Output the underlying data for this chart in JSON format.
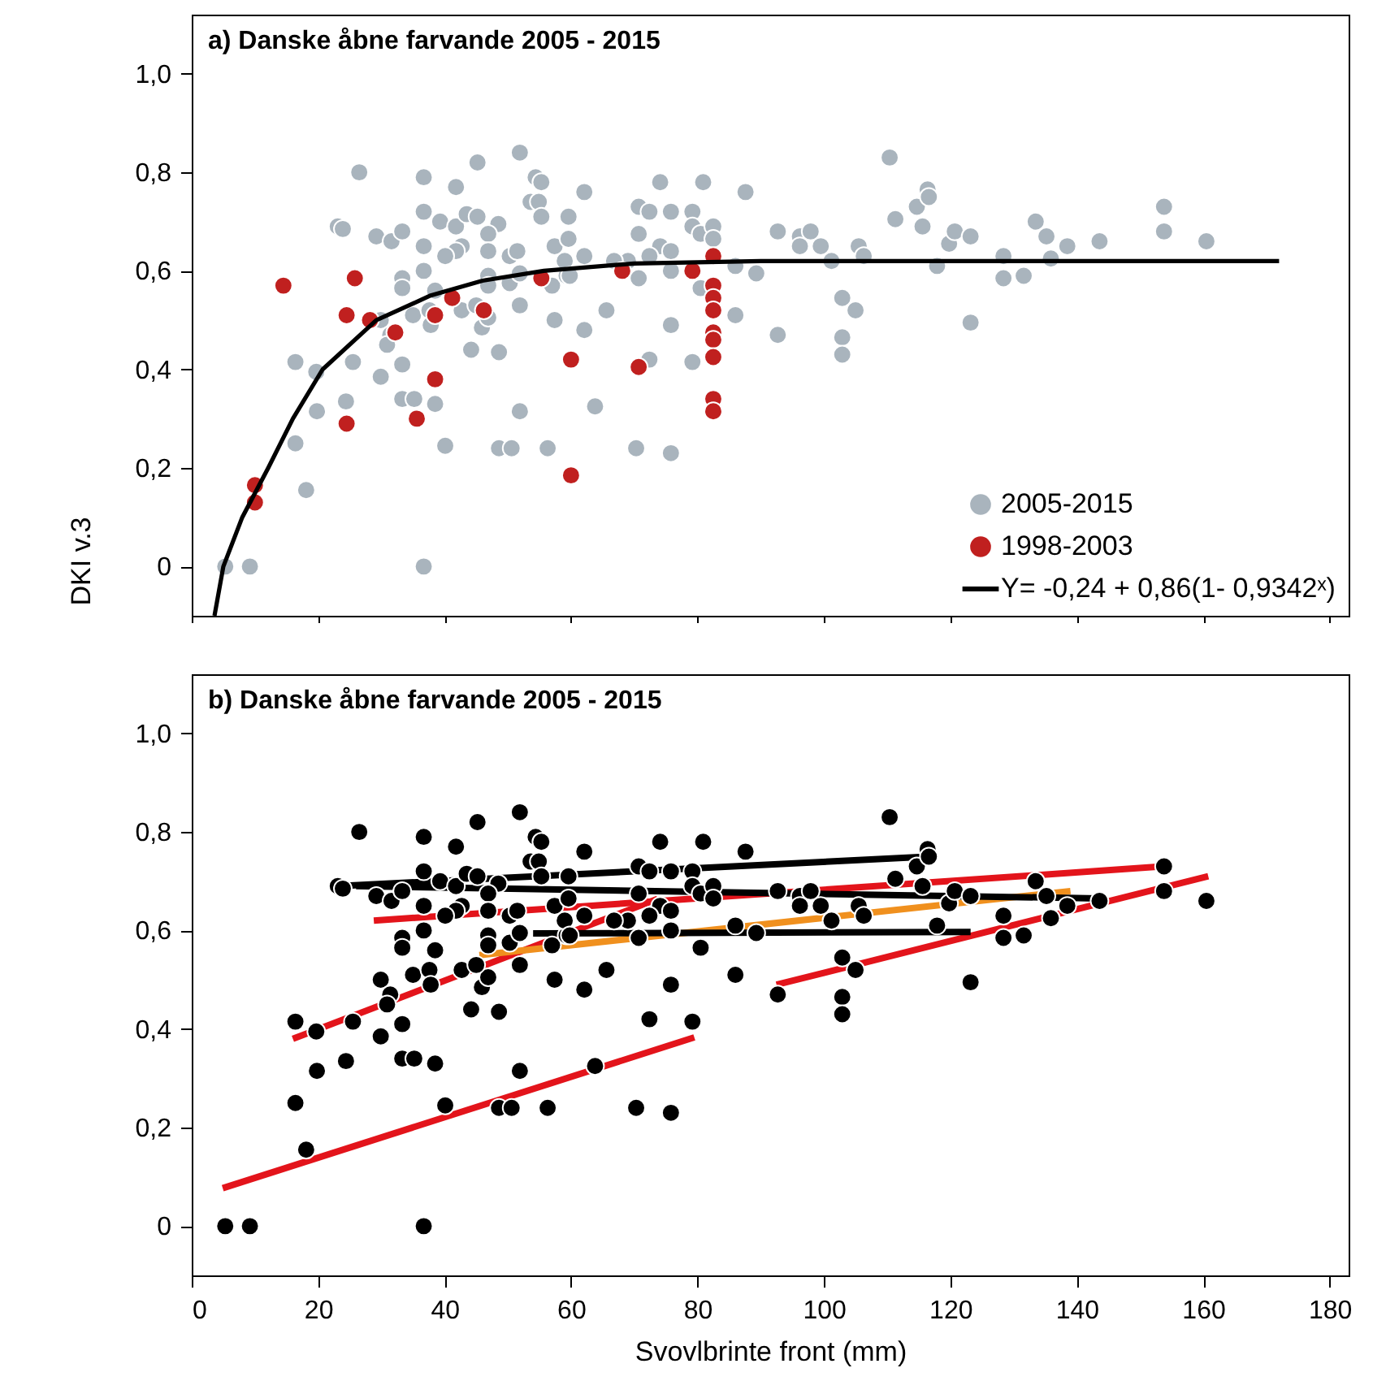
{
  "chart_data": [
    {
      "type": "scatter",
      "title": "a) Danske åbne farvande 2005 - 2015",
      "ylabel": "DKI v.3",
      "xlim": [
        0,
        183
      ],
      "ylim": [
        -0.1,
        1.12
      ],
      "xticks": [
        0,
        20,
        40,
        60,
        80,
        100,
        120,
        140,
        160,
        180
      ],
      "yticks": [
        {
          "value": 0,
          "label": "0"
        },
        {
          "value": 0.2,
          "label": "0,2"
        },
        {
          "value": 0.4,
          "label": "0,4"
        },
        {
          "value": 0.6,
          "label": "0,6"
        },
        {
          "value": 0.8,
          "label": "0,8"
        },
        {
          "value": 1,
          "label": "1,0"
        }
      ],
      "tick_labels": "y",
      "legend": "bottom right",
      "series": [
        {
          "name": "2005-2015",
          "color": "#a9b4bd",
          "marker": "circle",
          "x": [
            5.3,
            9.2,
            36.7,
            26.5,
            36.7,
            45.2,
            51.9,
            41.8,
            54.4,
            55.3,
            23.1,
            23.9,
            29.2,
            31.6,
            33.3,
            36.7,
            39.3,
            36.7,
            41.8,
            43.5,
            45.2,
            48.5,
            46.9,
            42.7,
            41.8,
            40.1,
            46.9,
            50.3,
            51.5,
            53.6,
            54.9,
            55.3,
            57.4,
            33.3,
            33.3,
            36.7,
            38.5,
            46.9,
            46.9,
            50.3,
            51.9,
            51.9,
            57,
            57.4,
            59.3,
            29.9,
            31.4,
            30.9,
            33.3,
            35,
            37.6,
            37.8,
            42.7,
            45.9,
            46.9,
            45,
            44.2,
            48.6,
            16.4,
            19.7,
            25.5,
            29.9,
            19.8,
            24.4,
            33.3,
            35.2,
            38.5,
            51.9,
            16.4,
            40.1,
            48.6,
            50.6,
            56.3,
            18.1,
            62.1,
            74.1,
            80.9,
            87.6,
            59.6,
            70.7,
            72.4,
            75.8,
            79.2,
            59.6,
            62.1,
            70.7,
            74.1,
            75.8,
            79.2,
            80.5,
            82.5,
            82.5,
            72.4,
            69,
            66.8,
            59,
            59.8,
            70.7,
            75.8,
            80.5,
            86,
            89.3,
            62.1,
            65.6,
            75.8,
            86,
            92.7,
            102.9,
            105,
            102.9,
            102.9,
            72.4,
            79.2,
            63.8,
            70.3,
            75.8,
            92.7,
            96.2,
            96.2,
            97.9,
            99.5,
            101.2,
            105.5,
            106.3,
            110.4,
            111.3,
            114.7,
            115.6,
            116.4,
            116.6,
            117.9,
            119.8,
            120.7,
            123.2,
            123.2,
            128.4,
            128.4,
            131.6,
            133.5,
            135.2,
            135.9,
            138.5,
            143.6,
            153.8,
            153.8,
            160.5
          ],
          "values": [
            0,
            0,
            0,
            0.8,
            0.79,
            0.82,
            0.84,
            0.77,
            0.79,
            0.78,
            0.69,
            0.685,
            0.67,
            0.66,
            0.68,
            0.72,
            0.7,
            0.65,
            0.69,
            0.715,
            0.71,
            0.695,
            0.675,
            0.65,
            0.64,
            0.63,
            0.64,
            0.63,
            0.64,
            0.74,
            0.74,
            0.71,
            0.65,
            0.585,
            0.565,
            0.6,
            0.56,
            0.59,
            0.57,
            0.575,
            0.595,
            0.53,
            0.57,
            0.5,
            0.59,
            0.5,
            0.47,
            0.45,
            0.41,
            0.51,
            0.52,
            0.49,
            0.52,
            0.485,
            0.505,
            0.53,
            0.44,
            0.435,
            0.415,
            0.395,
            0.415,
            0.385,
            0.315,
            0.335,
            0.34,
            0.34,
            0.33,
            0.315,
            0.25,
            0.245,
            0.24,
            0.24,
            0.24,
            0.155,
            0.76,
            0.78,
            0.78,
            0.76,
            0.71,
            0.73,
            0.72,
            0.72,
            0.72,
            0.665,
            0.63,
            0.675,
            0.65,
            0.64,
            0.69,
            0.675,
            0.69,
            0.665,
            0.63,
            0.62,
            0.62,
            0.62,
            0.59,
            0.585,
            0.6,
            0.565,
            0.61,
            0.595,
            0.48,
            0.52,
            0.49,
            0.51,
            0.47,
            0.545,
            0.52,
            0.465,
            0.43,
            0.42,
            0.415,
            0.325,
            0.24,
            0.23,
            0.68,
            0.67,
            0.65,
            0.68,
            0.65,
            0.62,
            0.65,
            0.63,
            0.83,
            0.705,
            0.73,
            0.69,
            0.765,
            0.75,
            0.61,
            0.655,
            0.68,
            0.67,
            0.495,
            0.63,
            0.585,
            0.59,
            0.7,
            0.67,
            0.625,
            0.65,
            0.66,
            0.73,
            0.68,
            0.66
          ]
        },
        {
          "name": "1998-2003",
          "color": "#c0201f",
          "marker": "circle",
          "x": [
            14.5,
            25.8,
            24.5,
            28.2,
            32.2,
            38.5,
            41.2,
            46.2,
            55.3,
            38.5,
            24.5,
            35.6,
            10,
            10,
            60,
            60,
            68.1,
            70.7,
            79.2,
            82.5,
            82.5,
            82.5,
            82.5,
            82.5,
            82.5,
            82.5,
            82.5,
            82.5
          ],
          "values": [
            0.57,
            0.585,
            0.51,
            0.5,
            0.475,
            0.51,
            0.545,
            0.52,
            0.585,
            0.38,
            0.29,
            0.3,
            0.165,
            0.13,
            0.42,
            0.185,
            0.6,
            0.405,
            0.6,
            0.63,
            0.57,
            0.545,
            0.52,
            0.475,
            0.46,
            0.425,
            0.34,
            0.315
          ]
        },
        {
          "name": "Y= -0,24 + 0,86(1- 0,9342ˣ)",
          "type": "line",
          "color": "#000000",
          "x": [
            3.6,
            5,
            8,
            12.1,
            16,
            20.7,
            29.2,
            37.8,
            46,
            55.7,
            70,
            90,
            172
          ],
          "values": [
            -0.1,
            0,
            0.1,
            0.2,
            0.3,
            0.4,
            0.5,
            0.55,
            0.58,
            0.6,
            0.615,
            0.62,
            0.62
          ]
        }
      ]
    },
    {
      "type": "scatter",
      "title": "b) Danske åbne farvande 2005 - 2015",
      "xlabel": "Svovlbrinte front (mm)",
      "xlim": [
        0,
        183
      ],
      "ylim": [
        -0.1,
        1.12
      ],
      "xticks": [
        0,
        20,
        40,
        60,
        80,
        100,
        120,
        140,
        160,
        180
      ],
      "yticks": [
        {
          "value": 0,
          "label": "0"
        },
        {
          "value": 0.2,
          "label": "0,2"
        },
        {
          "value": 0.4,
          "label": "0,4"
        },
        {
          "value": 0.6,
          "label": "0,6"
        },
        {
          "value": 0.8,
          "label": "0,8"
        },
        {
          "value": 1,
          "label": "1,0"
        }
      ],
      "series": [
        {
          "type": "line",
          "color": "#e3141b",
          "x": [
            4.9,
            79.5
          ],
          "values": [
            0.077,
            0.383
          ]
        },
        {
          "type": "line",
          "color": "#e3141b",
          "x": [
            16,
            73.7
          ],
          "values": [
            0.38,
            0.664
          ]
        },
        {
          "type": "line",
          "color": "#e3141b",
          "x": [
            28.8,
            153.6
          ],
          "values": [
            0.62,
            0.73
          ]
        },
        {
          "type": "line",
          "color": "#e3141b",
          "x": [
            92.5,
            160.8
          ],
          "values": [
            0.49,
            0.71
          ]
        },
        {
          "type": "line",
          "color": "#f0901e",
          "x": [
            45.5,
            139
          ],
          "values": [
            0.55,
            0.68
          ]
        },
        {
          "type": "line",
          "color": "#000000",
          "x": [
            23.2,
            116.4
          ],
          "values": [
            0.69,
            0.75
          ]
        },
        {
          "type": "line",
          "color": "#000000",
          "x": [
            26,
            143.5
          ],
          "values": [
            0.69,
            0.665
          ]
        },
        {
          "type": "line",
          "color": "#000000",
          "x": [
            54,
            123.2
          ],
          "values": [
            0.594,
            0.597
          ]
        },
        {
          "color": "#000000",
          "marker": "circle",
          "x": [
            5.3,
            9.2,
            36.7,
            26.5,
            36.7,
            45.2,
            51.9,
            41.8,
            54.4,
            55.3,
            23.1,
            23.9,
            29.2,
            31.6,
            33.3,
            36.7,
            39.3,
            36.7,
            41.8,
            43.5,
            45.2,
            48.5,
            46.9,
            42.7,
            41.8,
            40.1,
            46.9,
            50.3,
            51.5,
            53.6,
            54.9,
            55.3,
            57.4,
            33.3,
            33.3,
            36.7,
            38.5,
            46.9,
            46.9,
            50.3,
            51.9,
            51.9,
            57,
            57.4,
            59.3,
            29.9,
            31.4,
            30.9,
            33.3,
            35,
            37.6,
            37.8,
            42.7,
            45.9,
            46.9,
            45,
            44.2,
            48.6,
            16.4,
            19.7,
            25.5,
            29.9,
            19.8,
            24.4,
            33.3,
            35.2,
            38.5,
            51.9,
            16.4,
            40.1,
            48.6,
            50.6,
            56.3,
            18.1,
            62.1,
            74.1,
            80.9,
            87.6,
            59.6,
            70.7,
            72.4,
            75.8,
            79.2,
            59.6,
            62.1,
            70.7,
            74.1,
            75.8,
            79.2,
            80.5,
            82.5,
            82.5,
            72.4,
            69,
            66.8,
            59,
            59.8,
            70.7,
            75.8,
            80.5,
            86,
            89.3,
            62.1,
            65.6,
            75.8,
            86,
            92.7,
            102.9,
            105,
            102.9,
            102.9,
            72.4,
            79.2,
            63.8,
            70.3,
            75.8,
            92.7,
            96.2,
            96.2,
            97.9,
            99.5,
            101.2,
            105.5,
            106.3,
            110.4,
            111.3,
            114.7,
            115.6,
            116.4,
            116.6,
            117.9,
            119.8,
            120.7,
            123.2,
            123.2,
            128.4,
            128.4,
            131.6,
            133.5,
            135.2,
            135.9,
            138.5,
            143.6,
            153.8,
            153.8,
            160.5
          ],
          "values": [
            0,
            0,
            0,
            0.8,
            0.79,
            0.82,
            0.84,
            0.77,
            0.79,
            0.78,
            0.69,
            0.685,
            0.67,
            0.66,
            0.68,
            0.72,
            0.7,
            0.65,
            0.69,
            0.715,
            0.71,
            0.695,
            0.675,
            0.65,
            0.64,
            0.63,
            0.64,
            0.63,
            0.64,
            0.74,
            0.74,
            0.71,
            0.65,
            0.585,
            0.565,
            0.6,
            0.56,
            0.59,
            0.57,
            0.575,
            0.595,
            0.53,
            0.57,
            0.5,
            0.59,
            0.5,
            0.47,
            0.45,
            0.41,
            0.51,
            0.52,
            0.49,
            0.52,
            0.485,
            0.505,
            0.53,
            0.44,
            0.435,
            0.415,
            0.395,
            0.415,
            0.385,
            0.315,
            0.335,
            0.34,
            0.34,
            0.33,
            0.315,
            0.25,
            0.245,
            0.24,
            0.24,
            0.24,
            0.155,
            0.76,
            0.78,
            0.78,
            0.76,
            0.71,
            0.73,
            0.72,
            0.72,
            0.72,
            0.665,
            0.63,
            0.675,
            0.65,
            0.64,
            0.69,
            0.675,
            0.69,
            0.665,
            0.63,
            0.62,
            0.62,
            0.62,
            0.59,
            0.585,
            0.6,
            0.565,
            0.61,
            0.595,
            0.48,
            0.52,
            0.49,
            0.51,
            0.47,
            0.545,
            0.52,
            0.465,
            0.43,
            0.42,
            0.415,
            0.325,
            0.24,
            0.23,
            0.68,
            0.67,
            0.65,
            0.68,
            0.65,
            0.62,
            0.65,
            0.63,
            0.83,
            0.705,
            0.73,
            0.69,
            0.765,
            0.75,
            0.61,
            0.655,
            0.68,
            0.67,
            0.495,
            0.63,
            0.585,
            0.59,
            0.7,
            0.67,
            0.625,
            0.65,
            0.66,
            0.73,
            0.68,
            0.66
          ]
        }
      ]
    }
  ]
}
